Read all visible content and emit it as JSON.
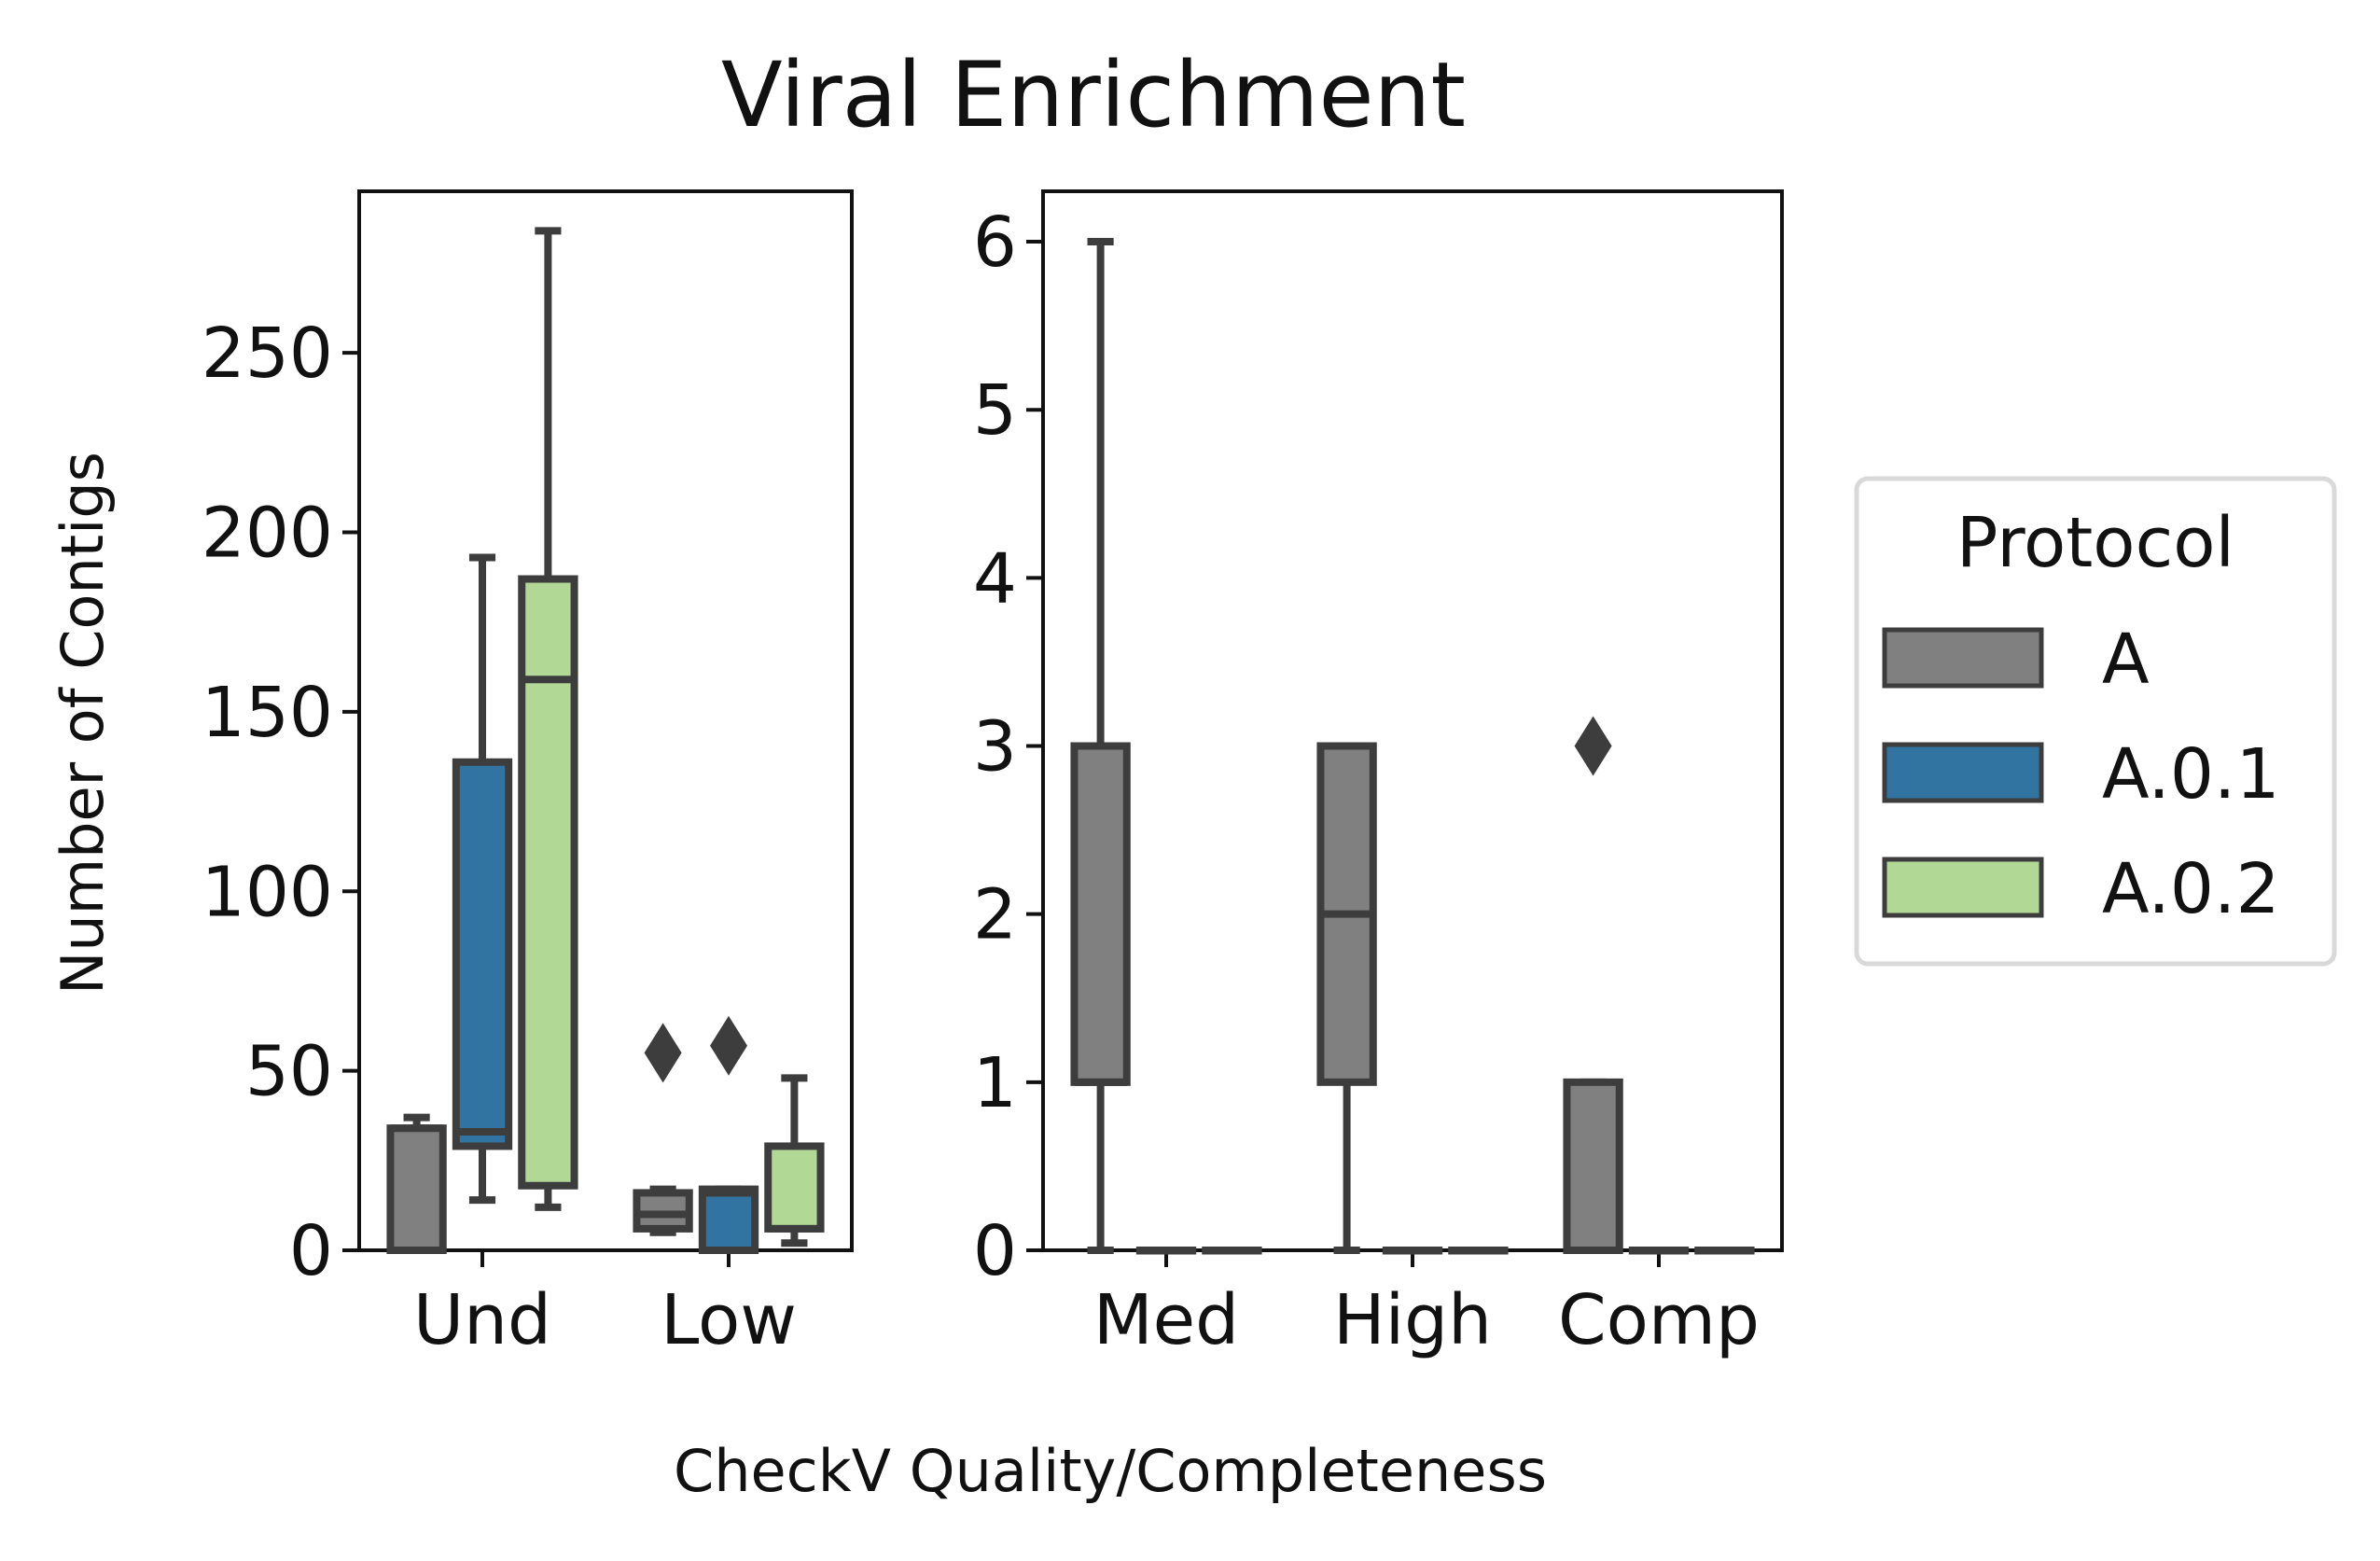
{
  "chart_data": {
    "type": "box",
    "title": "Viral Enrichment",
    "xlabel": "CheckV Quality/Completeness",
    "ylabel": "Number of Contigs",
    "legend": {
      "title": "Protocol",
      "placement": "right",
      "entries": [
        {
          "name": "A",
          "color": "#808080"
        },
        {
          "name": "A.0.1",
          "color": "#3274a1"
        },
        {
          "name": "A.0.2",
          "color": "#b2d895"
        }
      ]
    },
    "panels": [
      {
        "name": "left",
        "categories": [
          "Und",
          "Low"
        ],
        "ylim": [
          0,
          295
        ],
        "yticks": [
          0,
          50,
          100,
          150,
          200,
          250
        ],
        "series": [
          {
            "protocol": "A",
            "boxes": [
              {
                "whislo": 0,
                "q1": 0,
                "med": 34,
                "q3": 34,
                "whishi": 37,
                "fliers": []
              },
              {
                "whislo": 5,
                "q1": 6,
                "med": 10,
                "q3": 16,
                "whishi": 17,
                "fliers": [
                  55
                ]
              }
            ]
          },
          {
            "protocol": "A.0.1",
            "boxes": [
              {
                "whislo": 14,
                "q1": 29,
                "med": 33,
                "q3": 136,
                "whishi": 193,
                "fliers": []
              },
              {
                "whislo": 0,
                "q1": 0,
                "med": 16,
                "q3": 17,
                "whishi": 17,
                "fliers": [
                  57
                ]
              }
            ]
          },
          {
            "protocol": "A.0.2",
            "boxes": [
              {
                "whislo": 12,
                "q1": 18,
                "med": 159,
                "q3": 187,
                "whishi": 284,
                "fliers": []
              },
              {
                "whislo": 2,
                "q1": 6,
                "med": 6,
                "q3": 29,
                "whishi": 48,
                "fliers": []
              }
            ]
          }
        ]
      },
      {
        "name": "right",
        "categories": [
          "Med",
          "High",
          "Comp"
        ],
        "ylim": [
          0,
          6.3
        ],
        "yticks": [
          0,
          1,
          2,
          3,
          4,
          5,
          6
        ],
        "series": [
          {
            "protocol": "A",
            "boxes": [
              {
                "whislo": 0,
                "q1": 1,
                "med": 1,
                "q3": 3,
                "whishi": 6,
                "fliers": []
              },
              {
                "whislo": 0,
                "q1": 1,
                "med": 2,
                "q3": 3,
                "whishi": 3,
                "fliers": []
              },
              {
                "whislo": 0,
                "q1": 0,
                "med": 0,
                "q3": 1,
                "whishi": 1,
                "fliers": [
                  3
                ]
              }
            ]
          },
          {
            "protocol": "A.0.1",
            "boxes": [
              {
                "whislo": 0,
                "q1": 0,
                "med": 0,
                "q3": 0,
                "whishi": 0,
                "fliers": []
              },
              {
                "whislo": 0,
                "q1": 0,
                "med": 0,
                "q3": 0,
                "whishi": 0,
                "fliers": []
              },
              {
                "whislo": 0,
                "q1": 0,
                "med": 0,
                "q3": 0,
                "whishi": 0,
                "fliers": []
              }
            ]
          },
          {
            "protocol": "A.0.2",
            "boxes": [
              {
                "whislo": 0,
                "q1": 0,
                "med": 0,
                "q3": 0,
                "whishi": 0,
                "fliers": []
              },
              {
                "whislo": 0,
                "q1": 0,
                "med": 0,
                "q3": 0,
                "whishi": 0,
                "fliers": []
              },
              {
                "whislo": 0,
                "q1": 0,
                "med": 0,
                "q3": 0,
                "whishi": 0,
                "fliers": []
              }
            ]
          }
        ]
      }
    ]
  }
}
